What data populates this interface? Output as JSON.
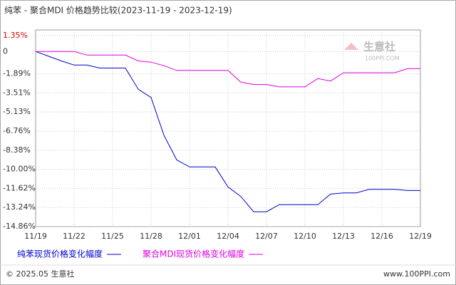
{
  "chart_data": {
    "type": "line",
    "title": "纯苯 - 聚合MDI 价格趋势比较(2023-11-19 - 2023-12-19)",
    "categories": [
      "11/19",
      null,
      null,
      "11/22",
      null,
      null,
      "11/25",
      null,
      null,
      "11/28",
      null,
      null,
      "12/01",
      null,
      null,
      "12/04",
      null,
      null,
      "12/07",
      null,
      null,
      "12/10",
      null,
      null,
      "12/13",
      null,
      null,
      "12/16",
      null,
      null,
      "12/19"
    ],
    "series": [
      {
        "name": "纯苯现货价格变化幅度",
        "color": "#0000cc",
        "values": [
          0,
          -0.4,
          -0.8,
          -1.15,
          -1.15,
          -1.4,
          -1.4,
          -1.4,
          -3.2,
          -3.9,
          -7.1,
          -9.2,
          -9.8,
          -9.8,
          -9.8,
          -11.5,
          -12.3,
          -13.6,
          -13.6,
          -13.0,
          -13.0,
          -13.0,
          -13.0,
          -12.1,
          -12.0,
          -12.0,
          -11.7,
          -11.7,
          -11.7,
          -11.8,
          -11.8
        ]
      },
      {
        "name": "聚合MDI现货价格变化幅度",
        "color": "#dd00dd",
        "values": [
          0,
          0,
          0,
          0,
          -0.3,
          -0.3,
          -0.3,
          -0.3,
          -0.8,
          -0.9,
          -1.2,
          -1.6,
          -1.6,
          -1.6,
          -1.6,
          -1.6,
          -2.6,
          -2.8,
          -2.8,
          -3.0,
          -3.0,
          -3.0,
          -2.3,
          -2.5,
          -1.8,
          -1.8,
          -1.8,
          -1.8,
          -1.8,
          -1.45,
          -1.45
        ]
      }
    ],
    "ylim": [
      -14.86,
      1.35
    ],
    "yticks": [
      {
        "value": 1.35,
        "label": "1.35%"
      },
      0,
      {
        "value": -1.89,
        "label": "-1.89%"
      },
      {
        "value": -3.51,
        "label": "-3.51%"
      },
      {
        "value": -5.13,
        "label": "-5.13%"
      },
      {
        "value": -6.76,
        "label": "-6.76%"
      },
      {
        "value": -8.38,
        "label": "-8.38%"
      },
      {
        "value": -10.0,
        "label": "-10.00%"
      },
      {
        "value": -11.62,
        "label": "-11.62%"
      },
      {
        "value": -13.24,
        "label": "-13.24%"
      },
      {
        "value": -14.86,
        "label": "-14.86%"
      }
    ],
    "grid": true,
    "watermark": "生意社",
    "watermark_sub": "100PPI.COM",
    "footer_left": "© 2025.05 生意社",
    "footer_right": "www.100PPI.com"
  }
}
